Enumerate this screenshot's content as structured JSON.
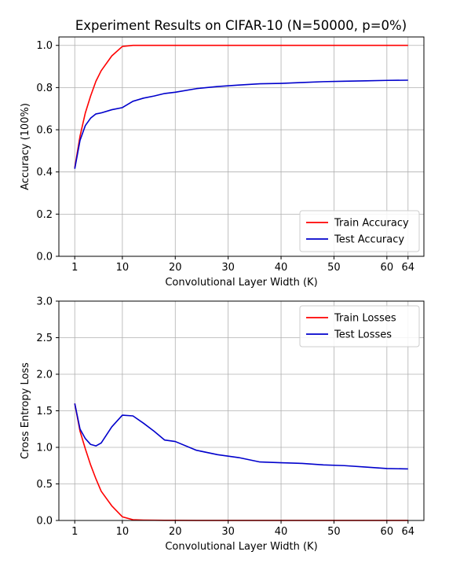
{
  "figure": {
    "title": "Experiment Results on CIFAR-10 (N=50000, p=0%)"
  },
  "chart_data": [
    {
      "type": "line",
      "title": "Experiment Results on CIFAR-10 (N=50000, p=0%)",
      "xlabel": "Convolutional Layer Width (K)",
      "ylabel": "Accuracy (100%)",
      "xlim": [
        -2,
        67
      ],
      "ylim": [
        0,
        1.04
      ],
      "xticks": [
        1,
        10,
        20,
        30,
        40,
        50,
        60,
        64
      ],
      "yticks": [
        0.0,
        0.2,
        0.4,
        0.6,
        0.8,
        1.0
      ],
      "ytick_labels": [
        "0.0",
        "0.2",
        "0.4",
        "0.6",
        "0.8",
        "1.0"
      ],
      "grid": true,
      "legend_position": "bottom-right",
      "series": [
        {
          "name": "Train Accuracy",
          "color": "#ff0000",
          "x": [
            1,
            2,
            3,
            4,
            5,
            6,
            8,
            10,
            12,
            14,
            16,
            18,
            20,
            24,
            28,
            32,
            36,
            40,
            44,
            48,
            52,
            56,
            60,
            64
          ],
          "y": [
            0.42,
            0.57,
            0.68,
            0.76,
            0.83,
            0.88,
            0.95,
            0.995,
            1.0,
            1.0,
            1.0,
            1.0,
            1.0,
            1.0,
            1.0,
            1.0,
            1.0,
            1.0,
            1.0,
            1.0,
            1.0,
            1.0,
            1.0,
            1.0
          ]
        },
        {
          "name": "Test Accuracy",
          "color": "#0000cc",
          "x": [
            1,
            2,
            3,
            4,
            5,
            6,
            8,
            10,
            12,
            14,
            16,
            18,
            20,
            24,
            28,
            32,
            36,
            40,
            44,
            48,
            52,
            56,
            60,
            64
          ],
          "y": [
            0.415,
            0.55,
            0.62,
            0.655,
            0.675,
            0.68,
            0.695,
            0.705,
            0.735,
            0.75,
            0.76,
            0.772,
            0.778,
            0.795,
            0.805,
            0.812,
            0.818,
            0.82,
            0.824,
            0.828,
            0.83,
            0.832,
            0.834,
            0.835
          ]
        }
      ]
    },
    {
      "type": "line",
      "xlabel": "Convolutional Layer Width (K)",
      "ylabel": "Cross Entropy Loss",
      "xlim": [
        -2,
        67
      ],
      "ylim": [
        0,
        3.0
      ],
      "xticks": [
        1,
        10,
        20,
        30,
        40,
        50,
        60,
        64
      ],
      "yticks": [
        0.0,
        0.5,
        1.0,
        1.5,
        2.0,
        2.5,
        3.0
      ],
      "ytick_labels": [
        "0.0",
        "0.5",
        "1.0",
        "1.5",
        "2.0",
        "2.5",
        "3.0"
      ],
      "grid": true,
      "legend_position": "top-right",
      "series": [
        {
          "name": "Train Losses",
          "color": "#ff0000",
          "x": [
            1,
            2,
            3,
            4,
            5,
            6,
            8,
            10,
            12,
            14,
            16,
            18,
            20,
            24,
            28,
            32,
            36,
            40,
            44,
            48,
            52,
            56,
            60,
            64
          ],
          "y": [
            1.6,
            1.22,
            0.98,
            0.76,
            0.57,
            0.4,
            0.2,
            0.05,
            0.01,
            0.005,
            0.003,
            0.002,
            0.002,
            0.001,
            0.001,
            0.001,
            0.001,
            0.001,
            0.001,
            0.001,
            0.001,
            0.001,
            0.001,
            0.001
          ]
        },
        {
          "name": "Test Losses",
          "color": "#0000cc",
          "x": [
            1,
            2,
            3,
            4,
            5,
            6,
            8,
            10,
            12,
            14,
            16,
            18,
            20,
            24,
            28,
            32,
            36,
            40,
            44,
            48,
            52,
            56,
            60,
            64
          ],
          "y": [
            1.6,
            1.25,
            1.12,
            1.04,
            1.02,
            1.06,
            1.28,
            1.44,
            1.43,
            1.33,
            1.22,
            1.1,
            1.08,
            0.96,
            0.9,
            0.86,
            0.8,
            0.79,
            0.78,
            0.76,
            0.75,
            0.73,
            0.71,
            0.705
          ]
        }
      ]
    }
  ]
}
